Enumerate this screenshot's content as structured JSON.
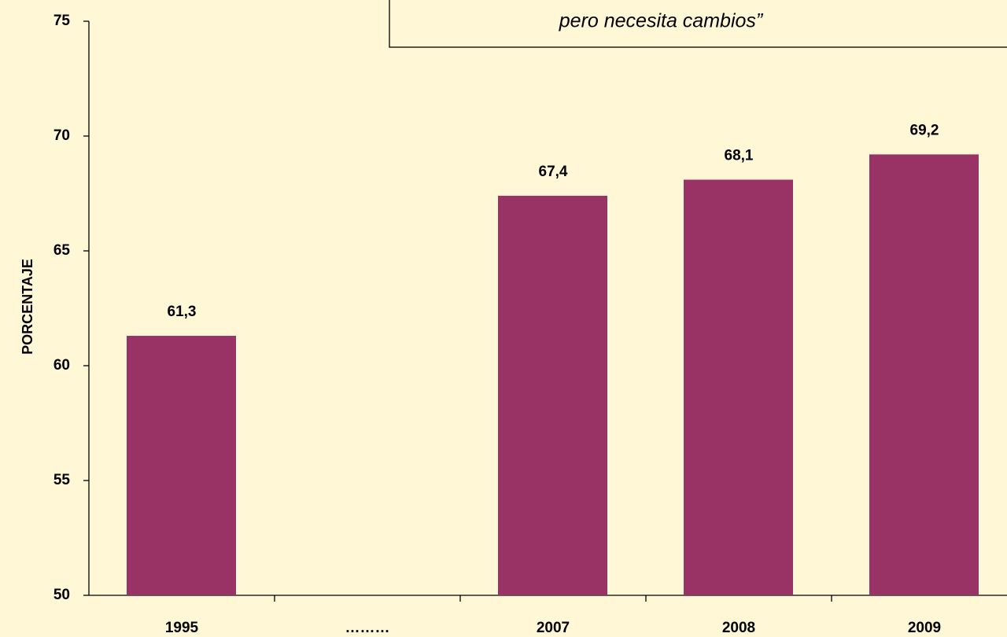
{
  "chart_data": {
    "type": "bar",
    "annotation": "pero necesita cambios”",
    "ylabel": "PORCENTAJE",
    "categories": [
      "1995",
      "………",
      "2007",
      "2008",
      "2009"
    ],
    "values": [
      61.3,
      null,
      67.4,
      68.1,
      69.2
    ],
    "value_labels": [
      "61,3",
      null,
      "67,4",
      "68,1",
      "69,2"
    ],
    "color": "#993366",
    "ylim": [
      50,
      75
    ],
    "yticks": [
      50,
      55,
      60,
      65,
      70,
      75
    ],
    "grid": false
  }
}
